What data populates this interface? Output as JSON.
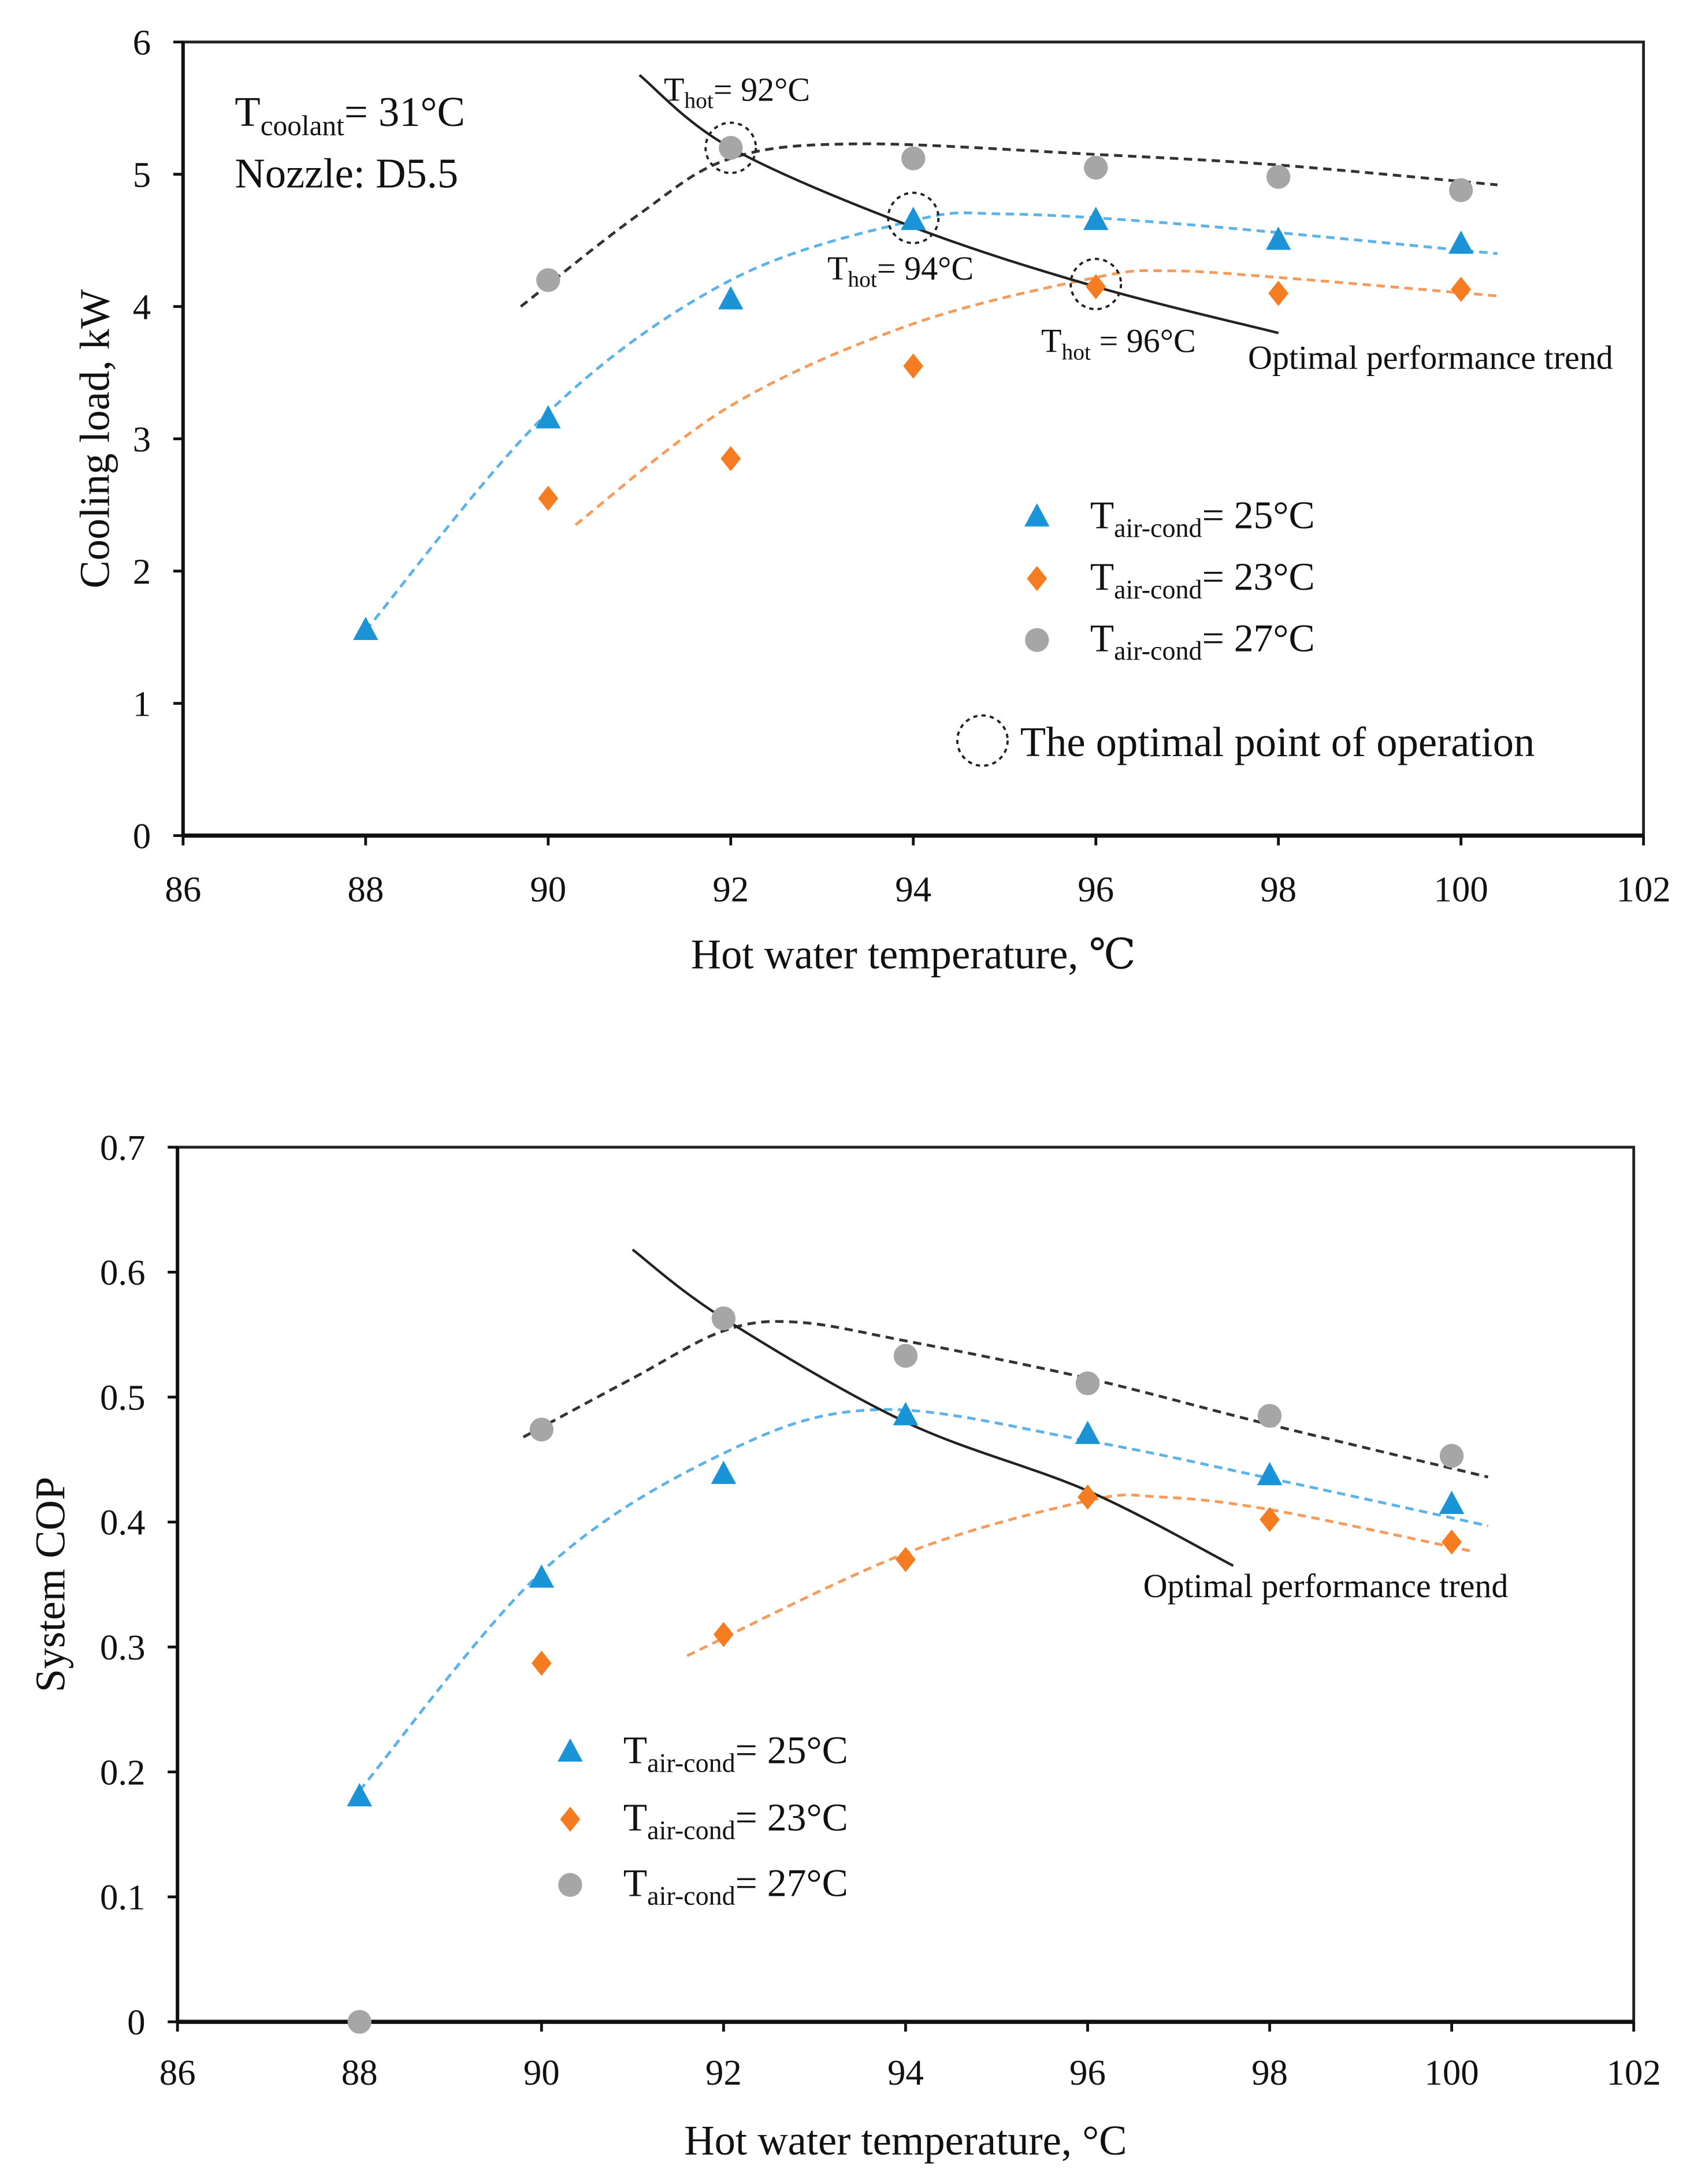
{
  "chart_data": [
    {
      "type": "scatter",
      "title": "",
      "xlabel": "Hot water temperature, ℃",
      "ylabel": "Cooling load, kW",
      "xlim": [
        86,
        102
      ],
      "ylim": [
        0,
        6
      ],
      "xticks": [
        "86",
        "88",
        "90",
        "92",
        "94",
        "96",
        "98",
        "100",
        "102"
      ],
      "yticks": [
        "0",
        "1",
        "2",
        "3",
        "4",
        "5",
        "6"
      ],
      "grid": false,
      "legend_placement": "lower-right",
      "annotations": {
        "coolant": {
          "main": "T",
          "sub": "coolant",
          "rest": "= 31°C"
        },
        "nozzle": "Nozzle: D5.5",
        "thot92": {
          "main": "T",
          "sub": "hot",
          "rest": "= 92°C"
        },
        "thot94": {
          "main": "T",
          "sub": "hot",
          "rest": "= 94°C"
        },
        "thot96": {
          "main": "T",
          "sub": "hot",
          "rest": " = 96°C"
        },
        "trend_label": "Optimal performance trend",
        "optimal_legend": "The optimal point of operation"
      },
      "optimal_points": [
        [
          92,
          5.2
        ],
        [
          94,
          4.67
        ],
        [
          96,
          4.17
        ]
      ],
      "optimal_trend": [
        [
          91,
          5.75
        ],
        [
          92,
          5.2
        ],
        [
          94,
          4.6
        ],
        [
          96,
          4.15
        ],
        [
          98,
          3.8
        ]
      ],
      "series": [
        {
          "name": {
            "main": "T",
            "sub": "air-cond",
            "rest": "= 25°C"
          },
          "marker": "triangle",
          "color": "#1a94d6",
          "x": [
            88,
            90,
            92,
            94,
            96,
            98,
            100
          ],
          "y": [
            1.55,
            3.15,
            4.05,
            4.65,
            4.65,
            4.5,
            4.47
          ],
          "trend": [
            [
              88,
              1.55
            ],
            [
              90,
              3.2
            ],
            [
              92,
              4.2
            ],
            [
              94,
              4.65
            ],
            [
              95,
              4.7
            ],
            [
              97,
              4.62
            ],
            [
              100.4,
              4.4
            ]
          ]
        },
        {
          "name": {
            "main": "T",
            "sub": "air-cond",
            "rest": "= 23°C"
          },
          "marker": "diamond",
          "color": "#f57c20",
          "x": [
            90,
            92,
            94,
            96,
            98,
            100
          ],
          "y": [
            2.55,
            2.85,
            3.55,
            4.15,
            4.1,
            4.13
          ],
          "trend": [
            [
              90.3,
              2.35
            ],
            [
              92,
              3.25
            ],
            [
              94,
              3.87
            ],
            [
              96,
              4.22
            ],
            [
              96.8,
              4.27
            ],
            [
              98,
              4.22
            ],
            [
              100.4,
              4.08
            ]
          ]
        },
        {
          "name": {
            "main": "T",
            "sub": "air-cond",
            "rest": "= 27°C"
          },
          "marker": "circle",
          "color": "#a6a6a6",
          "x": [
            90,
            92,
            94,
            96,
            98,
            100
          ],
          "y": [
            4.2,
            5.2,
            5.12,
            5.05,
            4.98,
            4.88
          ],
          "trend": [
            [
              89.7,
              4.0
            ],
            [
              91,
              4.7
            ],
            [
              92,
              5.12
            ],
            [
              93.4,
              5.23
            ],
            [
              96,
              5.15
            ],
            [
              98,
              5.07
            ],
            [
              100.4,
              4.92
            ]
          ]
        }
      ]
    },
    {
      "type": "scatter",
      "title": "",
      "xlabel": "Hot water temperature, °C",
      "ylabel": "System COP",
      "xlim": [
        86,
        102
      ],
      "ylim": [
        0,
        0.7
      ],
      "xticks": [
        "86",
        "88",
        "90",
        "92",
        "94",
        "96",
        "98",
        "100",
        "102"
      ],
      "yticks": [
        "0",
        "0.1",
        "0.2",
        "0.3",
        "0.4",
        "0.5",
        "0.6",
        "0.7"
      ],
      "grid": false,
      "legend_placement": "lower-left",
      "annotations": {
        "trend_label": "Optimal performance trend"
      },
      "optimal_trend": [
        [
          91,
          0.618
        ],
        [
          92,
          0.563
        ],
        [
          94,
          0.48
        ],
        [
          96,
          0.425
        ],
        [
          97.6,
          0.365
        ]
      ],
      "series": [
        {
          "name": {
            "main": "T",
            "sub": "air-cond",
            "rest": "= 25°C"
          },
          "marker": "triangle",
          "color": "#1a94d6",
          "x": [
            88,
            90,
            92,
            94,
            96,
            98,
            100
          ],
          "y": [
            0.18,
            0.355,
            0.438,
            0.485,
            0.47,
            0.437,
            0.414
          ],
          "trend": [
            [
              88,
              0.185
            ],
            [
              90,
              0.36
            ],
            [
              92,
              0.455
            ],
            [
              93.7,
              0.49
            ],
            [
              96,
              0.465
            ],
            [
              98,
              0.435
            ],
            [
              100.4,
              0.397
            ]
          ]
        },
        {
          "name": {
            "main": "T",
            "sub": "air-cond",
            "rest": "= 23°C"
          },
          "marker": "diamond",
          "color": "#f57c20",
          "x": [
            90,
            92,
            94,
            96,
            98,
            100
          ],
          "y": [
            0.287,
            0.31,
            0.37,
            0.42,
            0.402,
            0.384
          ],
          "trend": [
            [
              91.6,
              0.293
            ],
            [
              94,
              0.375
            ],
            [
              96,
              0.417
            ],
            [
              96.8,
              0.42
            ],
            [
              98,
              0.41
            ],
            [
              100.2,
              0.377
            ]
          ]
        },
        {
          "name": {
            "main": "T",
            "sub": "air-cond",
            "rest": "= 27°C"
          },
          "marker": "circle",
          "color": "#a6a6a6",
          "x": [
            88,
            90,
            92,
            94,
            96,
            98,
            100
          ],
          "y": [
            0,
            0.474,
            0.563,
            0.533,
            0.511,
            0.485,
            0.453
          ],
          "trend": [
            [
              89.8,
              0.468
            ],
            [
              91,
              0.515
            ],
            [
              92,
              0.553
            ],
            [
              92.8,
              0.56
            ],
            [
              94,
              0.545
            ],
            [
              96,
              0.515
            ],
            [
              98,
              0.478
            ],
            [
              100.4,
              0.436
            ]
          ],
          "trend_skip_first": true
        }
      ]
    }
  ]
}
